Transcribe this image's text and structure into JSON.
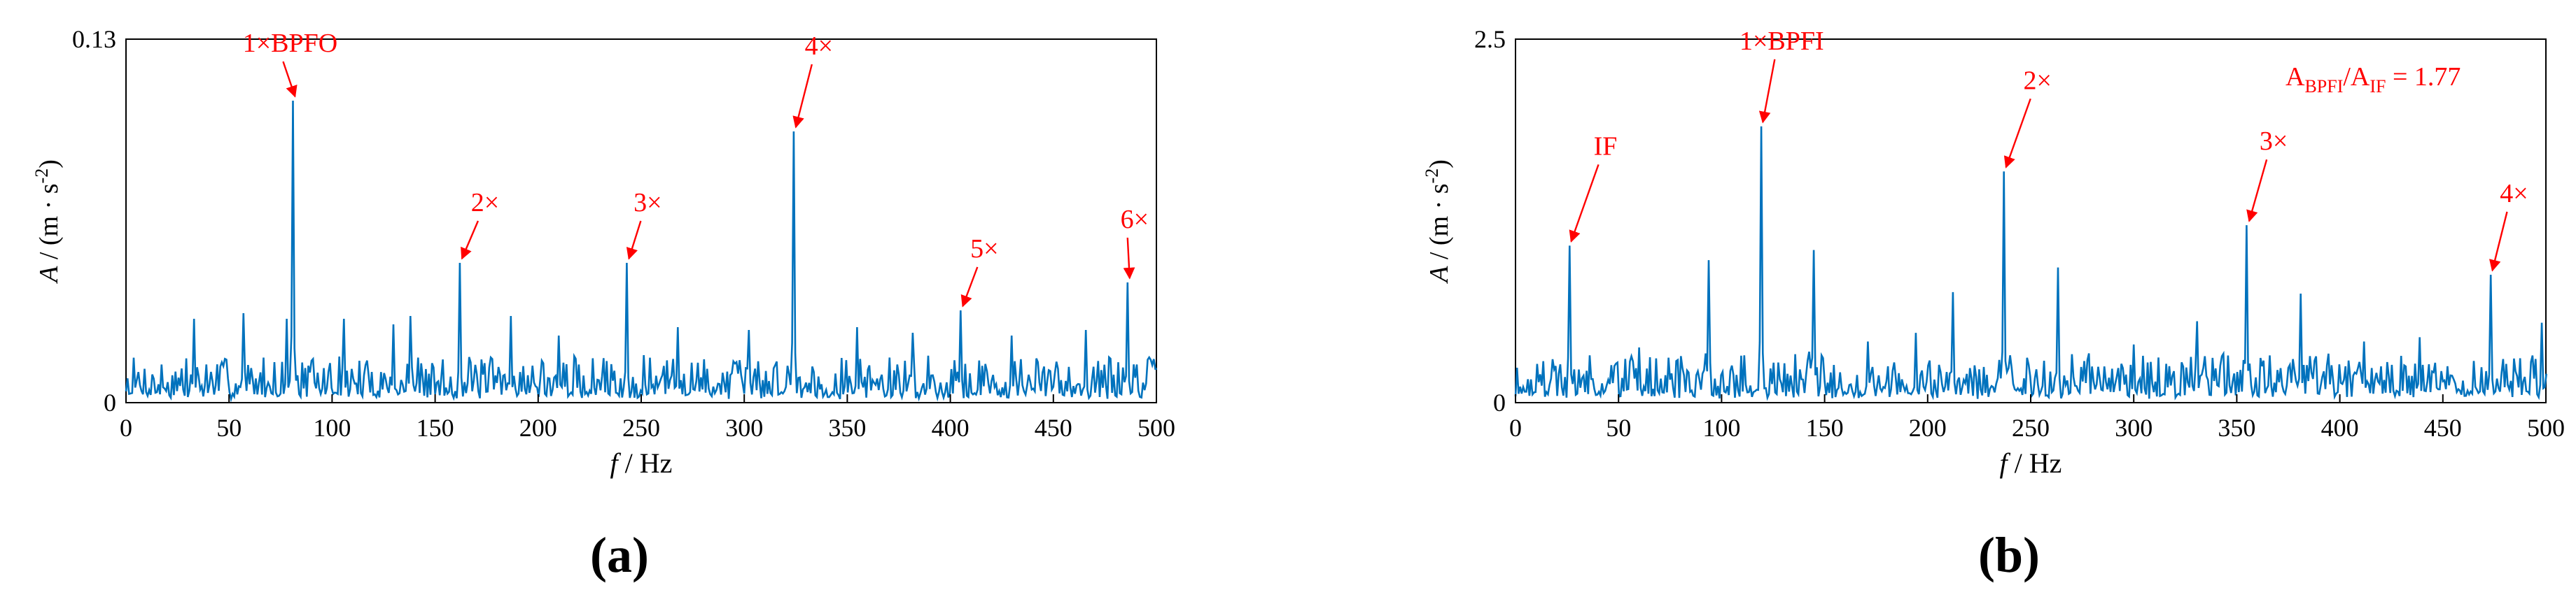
{
  "chart_data": [
    {
      "type": "line",
      "panel_label": "(a)",
      "xlabel_italic": "f",
      "xlabel": "/  Hz",
      "ylabel_italic": "A",
      "ylabel_open": " / (m · s",
      "ylabel_sup": "-2",
      "ylabel_close": ")",
      "xlim": [
        0,
        500
      ],
      "ylim": [
        0,
        0.13
      ],
      "xticks": [
        "0",
        "50",
        "100",
        "150",
        "200",
        "250",
        "300",
        "350",
        "400",
        "450",
        "500"
      ],
      "yticks": [
        "0",
        "0.13"
      ],
      "grid": false,
      "line_color": "#0072BD",
      "annotation_color": "#ff0000",
      "noise_level": 0.0085,
      "noise_seed": 7,
      "peaks": [
        {
          "x": 81,
          "y": 0.108,
          "label": "1×BPFO"
        },
        {
          "x": 162,
          "y": 0.05,
          "label": "2×"
        },
        {
          "x": 243,
          "y": 0.05,
          "label": "3×"
        },
        {
          "x": 324,
          "y": 0.097,
          "label": "4×"
        },
        {
          "x": 405,
          "y": 0.033,
          "label": "5×"
        },
        {
          "x": 486,
          "y": 0.043,
          "label": "6×"
        }
      ],
      "minor_peaks": [
        {
          "x": 33,
          "y": 0.03
        },
        {
          "x": 57,
          "y": 0.032
        },
        {
          "x": 78,
          "y": 0.03
        },
        {
          "x": 106,
          "y": 0.03
        },
        {
          "x": 130,
          "y": 0.028
        },
        {
          "x": 138,
          "y": 0.031
        },
        {
          "x": 187,
          "y": 0.031
        },
        {
          "x": 210,
          "y": 0.024
        },
        {
          "x": 268,
          "y": 0.027
        },
        {
          "x": 302,
          "y": 0.026
        },
        {
          "x": 355,
          "y": 0.027
        },
        {
          "x": 382,
          "y": 0.025
        },
        {
          "x": 430,
          "y": 0.024
        },
        {
          "x": 466,
          "y": 0.026
        }
      ]
    },
    {
      "type": "line",
      "panel_label": "(b)",
      "xlabel_italic": "f",
      "xlabel": "/  Hz",
      "ylabel_italic": "A",
      "ylabel_open": " / (m · s",
      "ylabel_sup": "-2",
      "ylabel_close": ")",
      "xlim": [
        0,
        500
      ],
      "ylim": [
        0,
        2.5
      ],
      "xticks": [
        "0",
        "50",
        "100",
        "150",
        "200",
        "250",
        "300",
        "350",
        "400",
        "450",
        "500"
      ],
      "yticks": [
        "0",
        "2.5"
      ],
      "grid": false,
      "line_color": "#0072BD",
      "annotation_color": "#ff0000",
      "ratio_text": {
        "A": "A",
        "sub1": "BPFI",
        "slash": "/A",
        "sub2": "IF",
        "value": " = 1.77"
      },
      "noise_level": 0.17,
      "noise_seed": 19,
      "peaks": [
        {
          "x": 26,
          "y": 1.08,
          "label": "IF"
        },
        {
          "x": 119,
          "y": 1.9,
          "label": "1×BPFI"
        },
        {
          "x": 237,
          "y": 1.59,
          "label": "2×"
        },
        {
          "x": 355,
          "y": 1.22,
          "label": "3×"
        },
        {
          "x": 473,
          "y": 0.88,
          "label": "4×"
        }
      ],
      "minor_peaks": [
        {
          "x": 94,
          "y": 0.98
        },
        {
          "x": 145,
          "y": 1.05
        },
        {
          "x": 212,
          "y": 0.76
        },
        {
          "x": 263,
          "y": 0.93
        },
        {
          "x": 331,
          "y": 0.56
        },
        {
          "x": 381,
          "y": 0.75
        },
        {
          "x": 439,
          "y": 0.45
        },
        {
          "x": 498,
          "y": 0.55
        },
        {
          "x": 60,
          "y": 0.38
        },
        {
          "x": 171,
          "y": 0.42
        },
        {
          "x": 194,
          "y": 0.48
        },
        {
          "x": 300,
          "y": 0.4
        },
        {
          "x": 412,
          "y": 0.42
        }
      ]
    }
  ]
}
